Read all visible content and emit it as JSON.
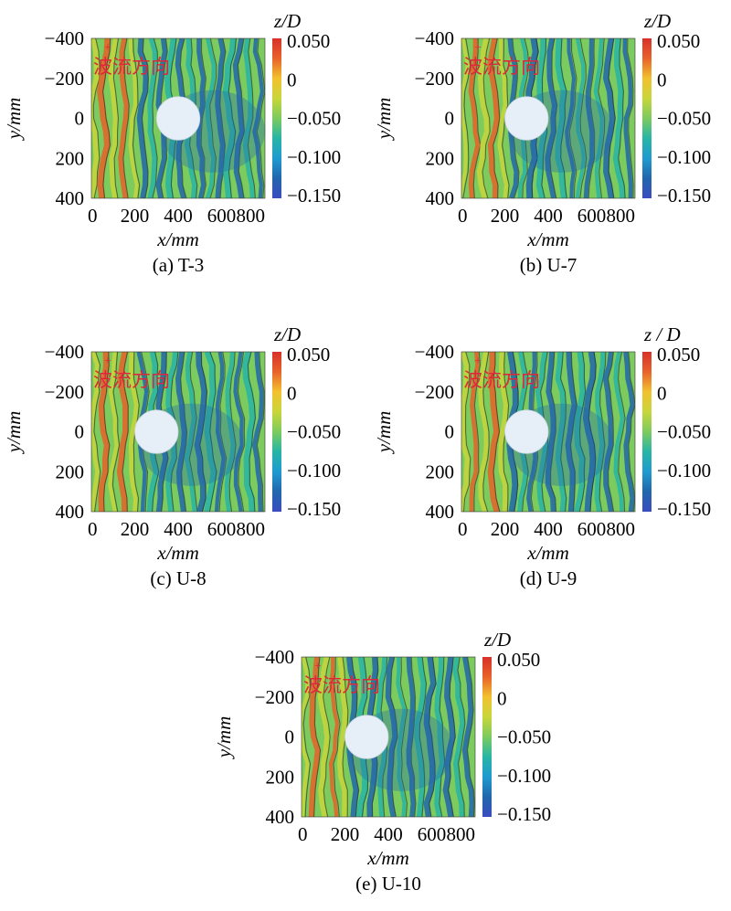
{
  "colors": {
    "colormap": [
      "#3b4cc0",
      "#2166ac",
      "#1f9bd0",
      "#27b5a6",
      "#7ccb5e",
      "#c8d63a",
      "#f2c12e",
      "#e8622a",
      "#d8312a"
    ],
    "background": "#ffffff",
    "pile": "#e6eef8",
    "annotation": "#e0263a"
  },
  "annotation_text": "波流方向",
  "annotation_arrow": "+",
  "chart_data": [
    {
      "type": "heatmap",
      "caption": "(a) T-3",
      "xlabel": "x/mm",
      "ylabel": "y/mm",
      "colorbar_label": "z/D",
      "xticks": [
        "0",
        "200",
        "400",
        "600",
        "800"
      ],
      "yticks": [
        "−400",
        "−200",
        "0",
        "200",
        "400"
      ],
      "colorbar_ticks": [
        "0.050",
        "0",
        "−0.050",
        "−0.100",
        "−0.150"
      ],
      "xlim": [
        0,
        800
      ],
      "ylim": [
        -400,
        400
      ],
      "zlim": [
        -0.15,
        0.05
      ],
      "pile_center": [
        400,
        0
      ],
      "pile_diameter": 200
    },
    {
      "type": "heatmap",
      "caption": "(b) U-7",
      "xlabel": "x/mm",
      "ylabel": "y/mm",
      "colorbar_label": "z/D",
      "xticks": [
        "0",
        "200",
        "400",
        "600",
        "800"
      ],
      "yticks": [
        "−400",
        "−200",
        "0",
        "200",
        "400"
      ],
      "colorbar_ticks": [
        "0.050",
        "0",
        "−0.050",
        "−0.100",
        "−0.150"
      ],
      "xlim": [
        0,
        800
      ],
      "ylim": [
        -400,
        400
      ],
      "zlim": [
        -0.15,
        0.05
      ],
      "pile_center": [
        300,
        0
      ],
      "pile_diameter": 200
    },
    {
      "type": "heatmap",
      "caption": "(c) U-8",
      "xlabel": "x/mm",
      "ylabel": "y/mm",
      "colorbar_label": "z/D",
      "xticks": [
        "0",
        "200",
        "400",
        "600",
        "800"
      ],
      "yticks": [
        "−400",
        "−200",
        "0",
        "200",
        "400"
      ],
      "colorbar_ticks": [
        "0.050",
        "0",
        "−0.050",
        "−0.100",
        "−0.150"
      ],
      "xlim": [
        0,
        800
      ],
      "ylim": [
        -400,
        400
      ],
      "zlim": [
        -0.15,
        0.05
      ],
      "pile_center": [
        300,
        0
      ],
      "pile_diameter": 200
    },
    {
      "type": "heatmap",
      "caption": "(d) U-9",
      "xlabel": "x/mm",
      "ylabel": "y/mm",
      "colorbar_label": "z / D",
      "xticks": [
        "0",
        "200",
        "400",
        "600",
        "800"
      ],
      "yticks": [
        "−400",
        "−200",
        "0",
        "200",
        "400"
      ],
      "colorbar_ticks": [
        "0.050",
        "0",
        "−0.050",
        "−0.100",
        "−0.150"
      ],
      "xlim": [
        0,
        800
      ],
      "ylim": [
        -400,
        400
      ],
      "zlim": [
        -0.15,
        0.05
      ],
      "pile_center": [
        300,
        0
      ],
      "pile_diameter": 200
    },
    {
      "type": "heatmap",
      "caption": "(e) U-10",
      "xlabel": "x/mm",
      "ylabel": "y/mm",
      "colorbar_label": "z/D",
      "xticks": [
        "0",
        "200",
        "400",
        "600",
        "800"
      ],
      "yticks": [
        "−400",
        "−200",
        "0",
        "200",
        "400"
      ],
      "colorbar_ticks": [
        "0.050",
        "0",
        "−0.050",
        "−0.100",
        "−0.150"
      ],
      "xlim": [
        0,
        800
      ],
      "ylim": [
        -400,
        400
      ],
      "zlim": [
        -0.15,
        0.05
      ],
      "pile_center": [
        300,
        0
      ],
      "pile_diameter": 200
    }
  ]
}
